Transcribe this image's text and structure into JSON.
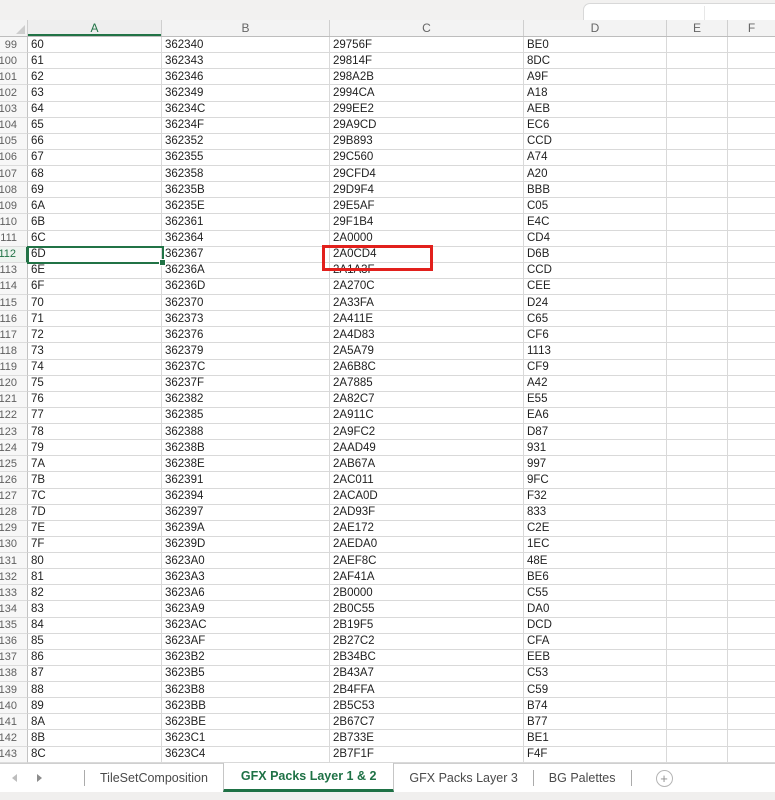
{
  "grid": {
    "column_headers": [
      "A",
      "B",
      "C",
      "D",
      "E",
      "F"
    ],
    "selection": {
      "cell": "A112",
      "column": "A",
      "row": 112
    },
    "rows": [
      [
        99,
        "60",
        "362340",
        "29756F",
        "BE0"
      ],
      [
        100,
        "61",
        "362343",
        "29814F",
        "8DC"
      ],
      [
        101,
        "62",
        "362346",
        "298A2B",
        "A9F"
      ],
      [
        102,
        "63",
        "362349",
        "2994CA",
        "A18"
      ],
      [
        103,
        "64",
        "36234C",
        "299EE2",
        "AEB"
      ],
      [
        104,
        "65",
        "36234F",
        "29A9CD",
        "EC6"
      ],
      [
        105,
        "66",
        "362352",
        "29B893",
        "CCD"
      ],
      [
        106,
        "67",
        "362355",
        "29C560",
        "A74"
      ],
      [
        107,
        "68",
        "362358",
        "29CFD4",
        "A20"
      ],
      [
        108,
        "69",
        "36235B",
        "29D9F4",
        "BBB"
      ],
      [
        109,
        "6A",
        "36235E",
        "29E5AF",
        "C05"
      ],
      [
        110,
        "6B",
        "362361",
        "29F1B4",
        "E4C"
      ],
      [
        111,
        "6C",
        "362364",
        "2A0000",
        "CD4"
      ],
      [
        112,
        "6D",
        "362367",
        "2A0CD4",
        "D6B"
      ],
      [
        113,
        "6E",
        "36236A",
        "2A1A3F",
        "CCD"
      ],
      [
        114,
        "6F",
        "36236D",
        "2A270C",
        "CEE"
      ],
      [
        115,
        "70",
        "362370",
        "2A33FA",
        "D24"
      ],
      [
        116,
        "71",
        "362373",
        "2A411E",
        "C65"
      ],
      [
        117,
        "72",
        "362376",
        "2A4D83",
        "CF6"
      ],
      [
        118,
        "73",
        "362379",
        "2A5A79",
        "1113"
      ],
      [
        119,
        "74",
        "36237C",
        "2A6B8C",
        "CF9"
      ],
      [
        120,
        "75",
        "36237F",
        "2A7885",
        "A42"
      ],
      [
        121,
        "76",
        "362382",
        "2A82C7",
        "E55"
      ],
      [
        122,
        "77",
        "362385",
        "2A911C",
        "EA6"
      ],
      [
        123,
        "78",
        "362388",
        "2A9FC2",
        "D87"
      ],
      [
        124,
        "79",
        "36238B",
        "2AAD49",
        "931"
      ],
      [
        125,
        "7A",
        "36238E",
        "2AB67A",
        "997"
      ],
      [
        126,
        "7B",
        "362391",
        "2AC011",
        "9FC"
      ],
      [
        127,
        "7C",
        "362394",
        "2ACA0D",
        "F32"
      ],
      [
        128,
        "7D",
        "362397",
        "2AD93F",
        "833"
      ],
      [
        129,
        "7E",
        "36239A",
        "2AE172",
        "C2E"
      ],
      [
        130,
        "7F",
        "36239D",
        "2AEDA0",
        "1EC"
      ],
      [
        131,
        "80",
        "3623A0",
        "2AEF8C",
        "48E"
      ],
      [
        132,
        "81",
        "3623A3",
        "2AF41A",
        "BE6"
      ],
      [
        133,
        "82",
        "3623A6",
        "2B0000",
        "C55"
      ],
      [
        134,
        "83",
        "3623A9",
        "2B0C55",
        "DA0"
      ],
      [
        135,
        "84",
        "3623AC",
        "2B19F5",
        "DCD"
      ],
      [
        136,
        "85",
        "3623AF",
        "2B27C2",
        "CFA"
      ],
      [
        137,
        "86",
        "3623B2",
        "2B34BC",
        "EEB"
      ],
      [
        138,
        "87",
        "3623B5",
        "2B43A7",
        "C53"
      ],
      [
        139,
        "88",
        "3623B8",
        "2B4FFA",
        "C59"
      ],
      [
        140,
        "89",
        "3623BB",
        "2B5C53",
        "B74"
      ],
      [
        141,
        "8A",
        "3623BE",
        "2B67C7",
        "B77"
      ],
      [
        142,
        "8B",
        "3623C1",
        "2B733E",
        "BE1"
      ],
      [
        143,
        "8C",
        "3623C4",
        "2B7F1F",
        "F4F"
      ]
    ]
  },
  "annotation": {
    "red_box_cell": "C112",
    "red_box_color": "#e2201c"
  },
  "sheet_tabs": {
    "tabs": [
      {
        "label": "TileSetComposition",
        "active": false
      },
      {
        "label": "GFX Packs Layer 1 & 2",
        "active": true
      },
      {
        "label": "GFX Packs Layer 3",
        "active": false
      },
      {
        "label": "BG Palettes",
        "active": false
      }
    ],
    "add_label": "+"
  },
  "colors": {
    "accent_green": "#217346",
    "annotation_red": "#e2201c",
    "gridline": "#d9d9d9"
  }
}
